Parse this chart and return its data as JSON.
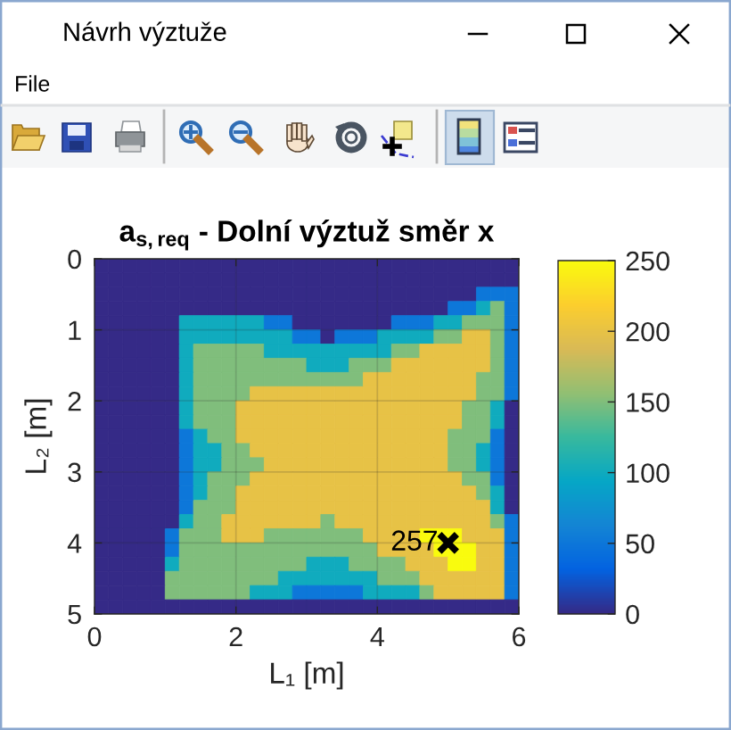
{
  "chart_data": {
    "type": "heatmap",
    "title": "a$_{s,req}$ - Dolní výztuž směr x",
    "xlabel": "L₁ [m]",
    "ylabel": "L₂ [m]",
    "xlim": [
      0,
      6
    ],
    "ylim": [
      5,
      0
    ],
    "xticks": [
      0,
      2,
      4,
      6
    ],
    "yticks": [
      0,
      1,
      2,
      3,
      4,
      5
    ],
    "clim": [
      0,
      250
    ],
    "cticks": [
      0,
      50,
      100,
      150,
      200,
      250
    ],
    "cells": [
      [
        0,
        0,
        0,
        0,
        0,
        0,
        0,
        0,
        0,
        0,
        0,
        0,
        0,
        0,
        0,
        0,
        0,
        0,
        0,
        0,
        0,
        0,
        0,
        0,
        0,
        0,
        0,
        0,
        0,
        0
      ],
      [
        0,
        0,
        0,
        0,
        0,
        0,
        0,
        0,
        0,
        0,
        0,
        0,
        0,
        0,
        0,
        0,
        0,
        0,
        0,
        0,
        0,
        0,
        0,
        0,
        0,
        0,
        0,
        0,
        0,
        0
      ],
      [
        0,
        0,
        0,
        0,
        0,
        0,
        0,
        0,
        0,
        0,
        0,
        0,
        0,
        0,
        0,
        0,
        0,
        0,
        0,
        0,
        0,
        0,
        0,
        0,
        0,
        0,
        0,
        50,
        50,
        50
      ],
      [
        0,
        0,
        0,
        0,
        0,
        0,
        0,
        0,
        0,
        0,
        0,
        0,
        0,
        0,
        0,
        0,
        0,
        0,
        0,
        0,
        0,
        0,
        0,
        0,
        0,
        50,
        50,
        100,
        150,
        50
      ],
      [
        0,
        0,
        0,
        0,
        0,
        0,
        100,
        100,
        100,
        100,
        100,
        100,
        50,
        50,
        0,
        0,
        0,
        0,
        0,
        0,
        0,
        50,
        50,
        50,
        100,
        100,
        150,
        150,
        150,
        50
      ],
      [
        0,
        0,
        0,
        0,
        0,
        0,
        100,
        100,
        100,
        100,
        100,
        100,
        100,
        100,
        50,
        50,
        0,
        50,
        50,
        50,
        100,
        100,
        100,
        100,
        150,
        150,
        200,
        200,
        150,
        50
      ],
      [
        0,
        0,
        0,
        0,
        0,
        0,
        100,
        150,
        150,
        150,
        150,
        150,
        100,
        100,
        100,
        100,
        100,
        100,
        100,
        100,
        100,
        150,
        150,
        200,
        200,
        200,
        200,
        200,
        150,
        50
      ],
      [
        0,
        0,
        0,
        0,
        0,
        0,
        100,
        150,
        150,
        150,
        150,
        150,
        150,
        150,
        150,
        100,
        100,
        100,
        150,
        150,
        150,
        200,
        200,
        200,
        200,
        200,
        200,
        200,
        150,
        50
      ],
      [
        0,
        0,
        0,
        0,
        0,
        0,
        100,
        150,
        150,
        150,
        150,
        150,
        150,
        150,
        150,
        150,
        150,
        150,
        150,
        200,
        200,
        200,
        200,
        200,
        200,
        200,
        200,
        150,
        150,
        50
      ],
      [
        0,
        0,
        0,
        0,
        0,
        0,
        100,
        150,
        150,
        150,
        150,
        200,
        200,
        200,
        200,
        200,
        200,
        200,
        200,
        200,
        200,
        200,
        200,
        200,
        200,
        200,
        200,
        150,
        150,
        50
      ],
      [
        0,
        0,
        0,
        0,
        0,
        0,
        100,
        150,
        150,
        150,
        200,
        200,
        200,
        200,
        200,
        200,
        200,
        200,
        200,
        200,
        200,
        200,
        200,
        200,
        200,
        200,
        150,
        150,
        100,
        0
      ],
      [
        0,
        0,
        0,
        0,
        0,
        0,
        100,
        150,
        150,
        150,
        200,
        200,
        200,
        200,
        200,
        200,
        200,
        200,
        200,
        200,
        200,
        200,
        200,
        200,
        200,
        200,
        150,
        150,
        100,
        0
      ],
      [
        0,
        0,
        0,
        0,
        0,
        0,
        50,
        100,
        150,
        150,
        200,
        200,
        200,
        200,
        200,
        200,
        200,
        200,
        200,
        200,
        200,
        200,
        200,
        200,
        200,
        150,
        150,
        150,
        50,
        0
      ],
      [
        0,
        0,
        0,
        0,
        0,
        0,
        50,
        100,
        100,
        150,
        150,
        200,
        200,
        200,
        200,
        200,
        200,
        200,
        200,
        200,
        200,
        200,
        200,
        200,
        200,
        150,
        150,
        100,
        50,
        0
      ],
      [
        0,
        0,
        0,
        0,
        0,
        0,
        50,
        100,
        100,
        150,
        150,
        150,
        200,
        200,
        200,
        200,
        200,
        200,
        200,
        200,
        200,
        200,
        200,
        200,
        200,
        150,
        150,
        100,
        50,
        0
      ],
      [
        0,
        0,
        0,
        0,
        0,
        0,
        50,
        100,
        150,
        150,
        150,
        200,
        200,
        200,
        200,
        200,
        200,
        200,
        200,
        200,
        200,
        200,
        200,
        200,
        200,
        200,
        150,
        150,
        50,
        0
      ],
      [
        0,
        0,
        0,
        0,
        0,
        0,
        50,
        100,
        150,
        150,
        200,
        200,
        200,
        200,
        200,
        200,
        200,
        200,
        200,
        200,
        200,
        200,
        200,
        200,
        200,
        200,
        200,
        150,
        100,
        0
      ],
      [
        0,
        0,
        0,
        0,
        0,
        0,
        50,
        150,
        150,
        150,
        200,
        200,
        200,
        200,
        200,
        200,
        200,
        200,
        200,
        200,
        200,
        200,
        200,
        200,
        200,
        200,
        200,
        200,
        100,
        0
      ],
      [
        0,
        0,
        0,
        0,
        0,
        0,
        100,
        150,
        150,
        200,
        200,
        200,
        200,
        200,
        200,
        200,
        150,
        200,
        200,
        200,
        200,
        200,
        200,
        200,
        200,
        200,
        200,
        200,
        150,
        50
      ],
      [
        0,
        0,
        0,
        0,
        0,
        50,
        150,
        150,
        150,
        200,
        200,
        200,
        150,
        150,
        150,
        150,
        150,
        150,
        150,
        200,
        200,
        200,
        200,
        250,
        250,
        250,
        200,
        200,
        200,
        50
      ],
      [
        0,
        0,
        0,
        0,
        0,
        50,
        150,
        150,
        150,
        150,
        150,
        150,
        150,
        150,
        150,
        150,
        150,
        150,
        150,
        150,
        200,
        200,
        200,
        200,
        250,
        250,
        250,
        200,
        200,
        50
      ],
      [
        0,
        0,
        0,
        0,
        0,
        100,
        150,
        150,
        150,
        150,
        150,
        150,
        150,
        150,
        150,
        100,
        100,
        100,
        150,
        150,
        150,
        150,
        200,
        200,
        200,
        250,
        250,
        200,
        200,
        50
      ],
      [
        0,
        0,
        0,
        0,
        0,
        150,
        150,
        150,
        150,
        150,
        150,
        150,
        150,
        100,
        100,
        100,
        100,
        100,
        100,
        100,
        150,
        150,
        150,
        200,
        200,
        200,
        200,
        200,
        200,
        50
      ],
      [
        0,
        0,
        0,
        0,
        0,
        150,
        150,
        150,
        150,
        150,
        150,
        100,
        100,
        100,
        50,
        50,
        50,
        50,
        50,
        100,
        100,
        100,
        100,
        150,
        200,
        200,
        200,
        200,
        200,
        50
      ],
      [
        0,
        0,
        0,
        0,
        0,
        0,
        0,
        0,
        0,
        0,
        0,
        0,
        0,
        0,
        0,
        0,
        0,
        0,
        0,
        0,
        0,
        0,
        0,
        0,
        0,
        0,
        0,
        0,
        0,
        0
      ]
    ],
    "series": [
      {
        "type": "scatter",
        "x": [
          5.0
        ],
        "values": [
          4.0
        ],
        "color": "#000000",
        "marker": "cross"
      }
    ],
    "grid": true,
    "annotations": [
      "Návrh výztuže",
      "File",
      {
        "text": "257",
        "x": 5.0,
        "y": 4.0
      }
    ]
  }
}
